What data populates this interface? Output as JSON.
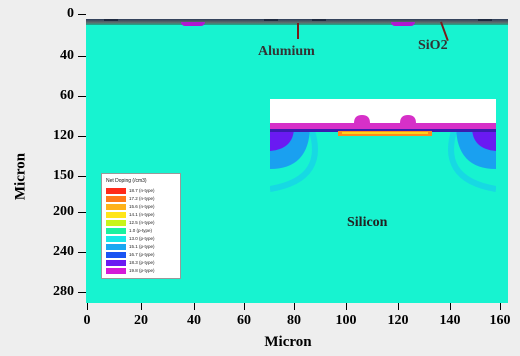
{
  "axes": {
    "y_title": "Micron",
    "x_title": "Micron",
    "y_ticks": [
      "0",
      "40",
      "60",
      "120",
      "150",
      "200",
      "240",
      "280"
    ],
    "x_ticks": [
      "0",
      "20",
      "40",
      "60",
      "80",
      "100",
      "120",
      "140",
      "160"
    ]
  },
  "annotations": {
    "aluminium": "Alumium",
    "sio2": "SiO2",
    "silicon": "Silicon"
  },
  "legend": {
    "title": "Net Doping (/cm3)",
    "entries": [
      {
        "label": "18.7 (n-type)",
        "color": "#ff2a1a"
      },
      {
        "label": "17.2 (n-type)",
        "color": "#ff7a1a"
      },
      {
        "label": "15.6 (n-type)",
        "color": "#ffb21a"
      },
      {
        "label": "14.1 (n-type)",
        "color": "#ffe51a"
      },
      {
        "label": "12.5 (n-type)",
        "color": "#c8f51a"
      },
      {
        "label": "1.0 (p-type)",
        "color": "#1af2a0"
      },
      {
        "label": "13.0 (p-type)",
        "color": "#17e8e8"
      },
      {
        "label": "15.1 (p-type)",
        "color": "#19a8f2"
      },
      {
        "label": "16.7 (p-type)",
        "color": "#1a54f2"
      },
      {
        "label": "18.3 (p-type)",
        "color": "#6a1af2"
      },
      {
        "label": "19.8 (p-type)",
        "color": "#d41ad8"
      }
    ]
  },
  "colors": {
    "silicon": "#17f3d0",
    "oxide": "#d630c8",
    "channel": "#ff8a1a",
    "metal": "#1e2a40"
  }
}
